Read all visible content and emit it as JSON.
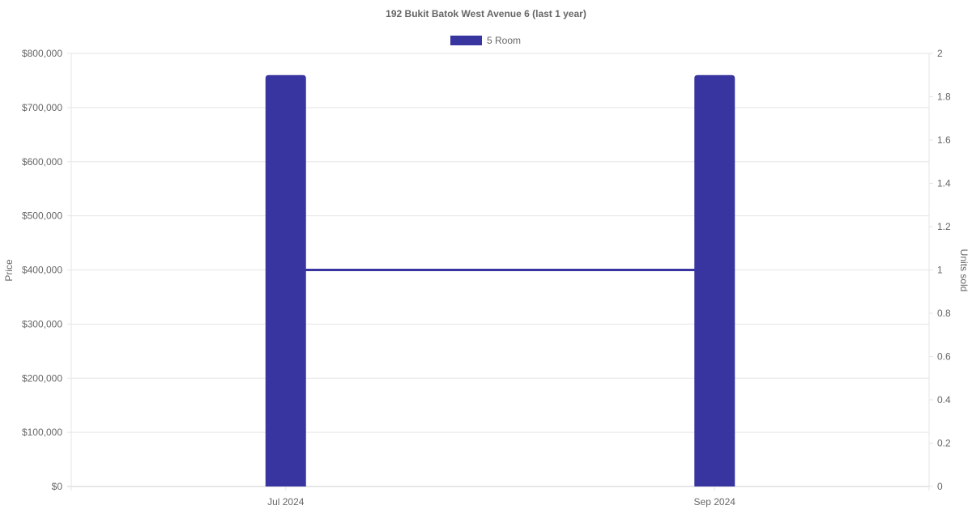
{
  "chart_data": {
    "type": "bar",
    "title": "192 Bukit Batok West Avenue 6 (last 1 year)",
    "legend": {
      "position": "top",
      "entries": [
        "5 Room"
      ]
    },
    "categories": [
      "Jul 2024",
      "Sep 2024"
    ],
    "series": [
      {
        "name": "5 Room",
        "type": "bar",
        "axis": "left",
        "values": [
          760000,
          760000
        ],
        "color": "#3835a0"
      },
      {
        "type": "line",
        "axis": "right",
        "values": [
          1,
          1
        ],
        "color": "#3835a0"
      }
    ],
    "ylabel": "Price",
    "ylim": [
      0,
      800000
    ],
    "yticks": [
      "$0",
      "$100,000",
      "$200,000",
      "$300,000",
      "$400,000",
      "$500,000",
      "$600,000",
      "$700,000",
      "$800,000"
    ],
    "y2label": "Units sold",
    "y2lim": [
      0,
      2
    ],
    "y2ticks": [
      "0",
      "0.2",
      "0.4",
      "0.6",
      "0.8",
      "1",
      "1.2",
      "1.4",
      "1.6",
      "1.8",
      "2"
    ],
    "grid": true
  }
}
